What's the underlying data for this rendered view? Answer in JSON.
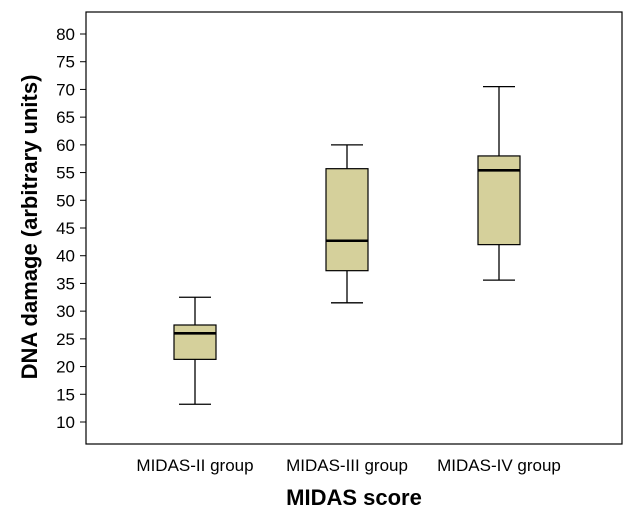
{
  "chart_data": {
    "type": "boxplot",
    "xlabel": "MIDAS score",
    "ylabel": "DNA damage (arbitrary units)",
    "ylim": [
      7,
      84
    ],
    "yticks": [
      10,
      15,
      20,
      25,
      30,
      35,
      40,
      45,
      50,
      55,
      60,
      65,
      70,
      75,
      80
    ],
    "categories": [
      "MIDAS-II group",
      "MIDAS-III group",
      "MIDAS-IV group"
    ],
    "boxes": [
      {
        "min": 13.2,
        "q1": 21.3,
        "median": 26.0,
        "q3": 27.5,
        "max": 32.5
      },
      {
        "min": 31.5,
        "q1": 37.3,
        "median": 42.7,
        "q3": 55.7,
        "max": 60.0
      },
      {
        "min": 35.6,
        "q1": 42.0,
        "median": 55.4,
        "q3": 58.0,
        "max": 70.5
      }
    ],
    "box_color": "#d5d09b",
    "grid": false
  }
}
